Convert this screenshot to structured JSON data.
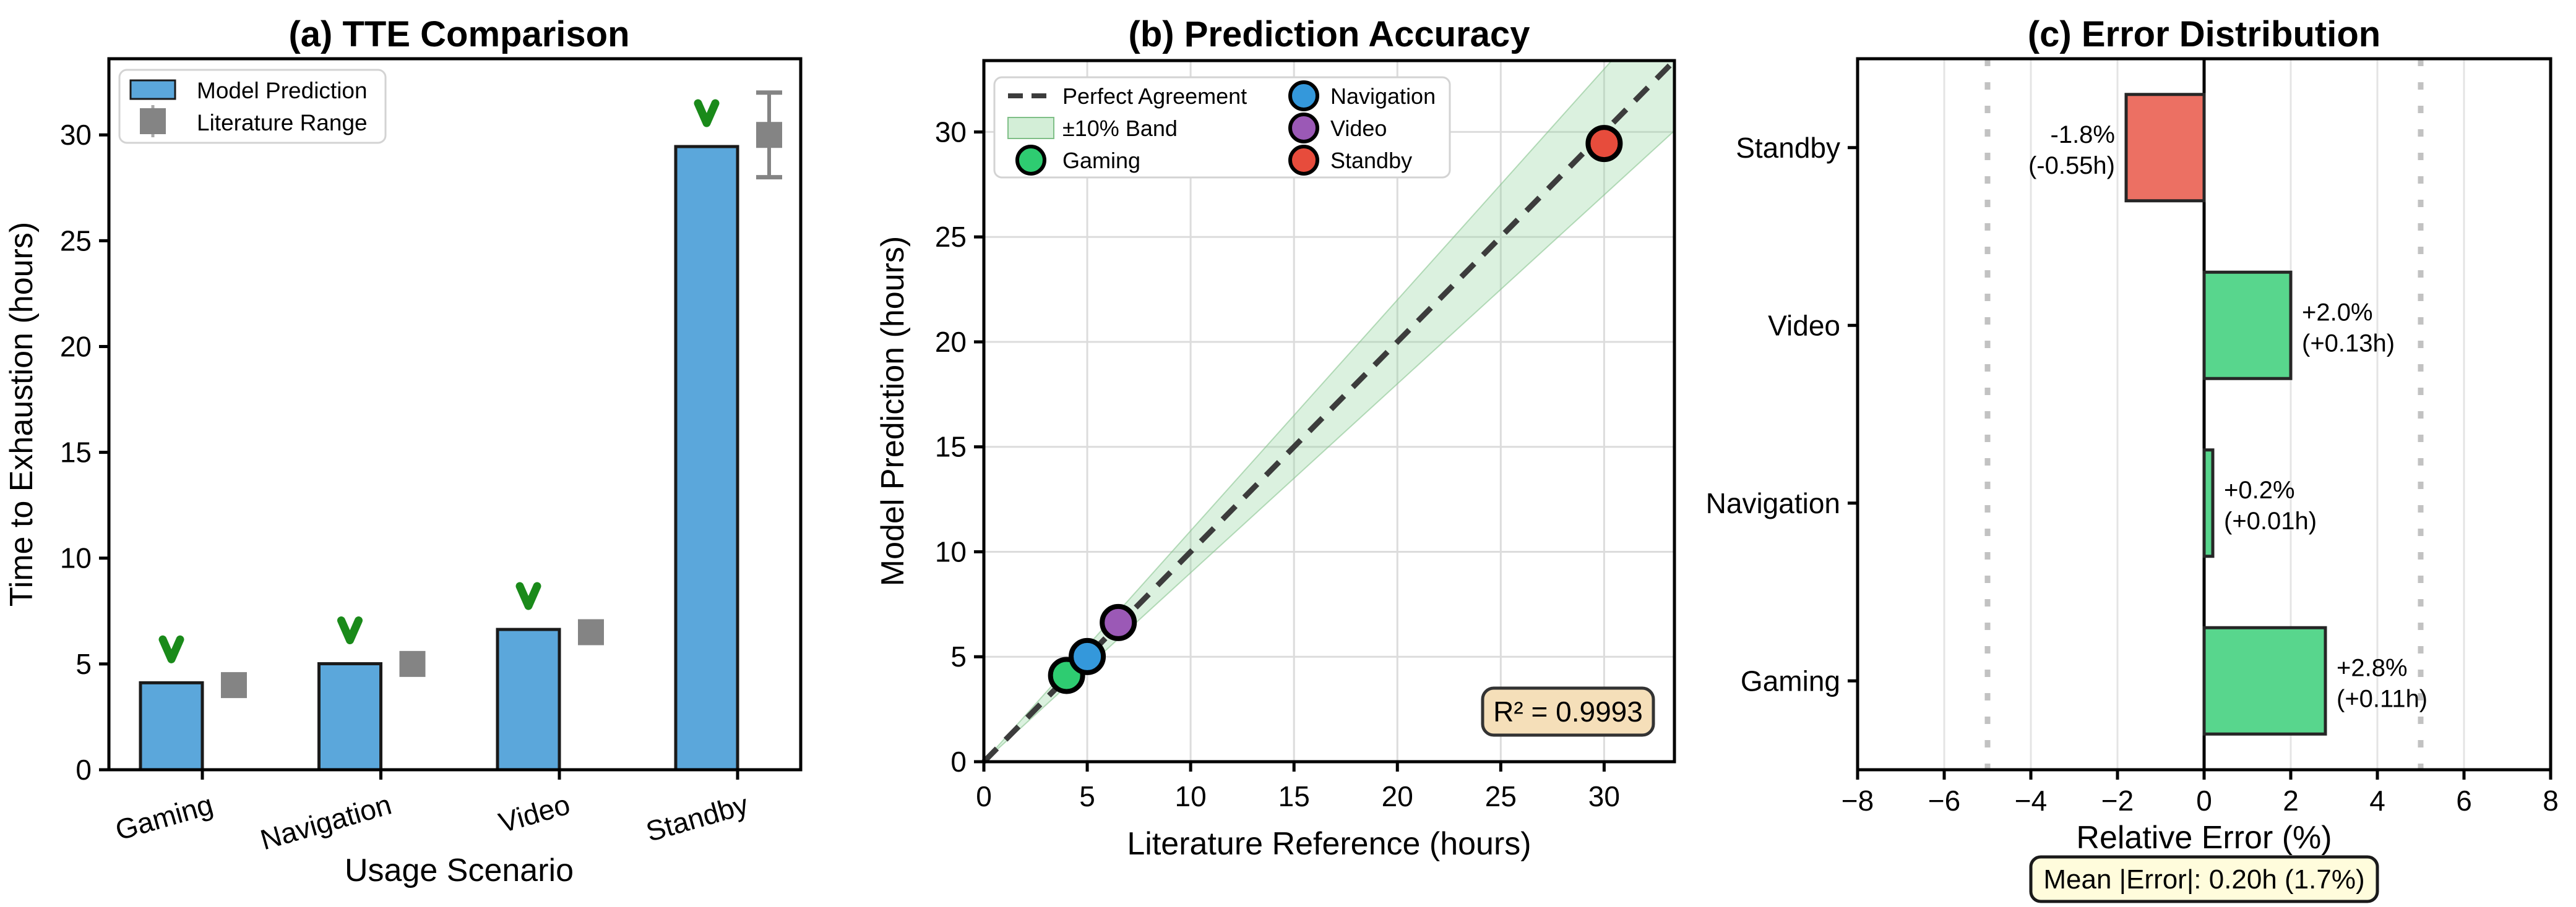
{
  "figure": {
    "background": "#FFFFFF"
  },
  "chart_data": [
    {
      "type": "bar",
      "panel": "a",
      "title": "(a) TTE Comparison",
      "xlabel": "Usage Scenario",
      "ylabel": "Time to Exhaustion (hours)",
      "categories": [
        "Gaming",
        "Navigation",
        "Video",
        "Standby"
      ],
      "ylim": [
        0,
        33.6
      ],
      "yticks": [
        0,
        5,
        10,
        15,
        20,
        25,
        30
      ],
      "series": [
        {
          "name": "Model Prediction",
          "type": "bar",
          "color": "#5BA7DB",
          "edge_color": "#1A1A1A",
          "values": [
            4.11,
            5.01,
            6.63,
            29.45
          ]
        },
        {
          "name": "Literature Range",
          "type": "errorbar-square",
          "color": "#848484",
          "centers": [
            4.0,
            5.0,
            6.5,
            30.0
          ],
          "err_low": [
            0.5,
            0.5,
            0.5,
            2.0
          ],
          "err_high": [
            0.5,
            0.5,
            0.5,
            2.0
          ]
        }
      ],
      "check_marks": {
        "symbol": "v-checkmark",
        "color": "#1A8A1A",
        "above_each_bar": true
      }
    },
    {
      "type": "scatter",
      "panel": "b",
      "title": "(b) Prediction Accuracy",
      "xlabel": "Literature Reference (hours)",
      "ylabel": "Model Prediction (hours)",
      "xlim": [
        0,
        33.4
      ],
      "ylim": [
        0,
        33.4
      ],
      "xticks": [
        0,
        5,
        10,
        15,
        20,
        25,
        30
      ],
      "yticks": [
        0,
        5,
        10,
        15,
        20,
        25,
        30
      ],
      "grid": true,
      "identity_line": {
        "label": "Perfect Agreement",
        "style": "dashed",
        "color": "#3C3C3C"
      },
      "band": {
        "label": "±10% Band",
        "percent": 10,
        "color": "#90D49B"
      },
      "points": [
        {
          "name": "Gaming",
          "x": 4.0,
          "y": 4.11,
          "color": "#2ECC71"
        },
        {
          "name": "Navigation",
          "x": 5.0,
          "y": 5.01,
          "color": "#3498DB"
        },
        {
          "name": "Video",
          "x": 6.5,
          "y": 6.63,
          "color": "#9B59B6"
        },
        {
          "name": "Standby",
          "x": 30.0,
          "y": 29.45,
          "color": "#E74C3C"
        }
      ],
      "r2_label": "R² = 0.9993",
      "r2_box_color": "#F5DFB9"
    },
    {
      "type": "bar-horizontal",
      "panel": "c",
      "title": "(c) Error Distribution",
      "xlabel": "Relative Error (%)",
      "xlim": [
        -8,
        8
      ],
      "xticks": [
        -8,
        -6,
        -4,
        -2,
        0,
        2,
        4,
        6,
        8
      ],
      "categories": [
        "Standby",
        "Video",
        "Navigation",
        "Gaming"
      ],
      "values": [
        -1.8,
        2.0,
        0.2,
        2.8
      ],
      "bar_colors": [
        "#EC7063",
        "#58D68D",
        "#58D68D",
        "#58D68D"
      ],
      "bar_edge_color": "#262626",
      "bar_labels": [
        [
          "-1.8%",
          "(-0.55h)"
        ],
        [
          "+2.0%",
          "(+0.13h)"
        ],
        [
          "+0.2%",
          "(+0.01h)"
        ],
        [
          "+2.8%",
          "(+0.11h)"
        ]
      ],
      "reference_lines": [
        -5,
        5
      ],
      "footer_label": "Mean |Error|: 0.20h (1.7%)",
      "footer_box_color": "#FFFCDC"
    }
  ]
}
